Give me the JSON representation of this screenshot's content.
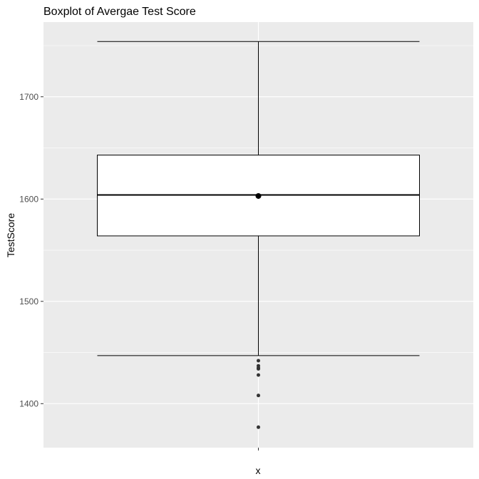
{
  "chart_data": {
    "type": "boxplot",
    "title": "Boxplot of Avergae Test Score",
    "xlabel": "x",
    "ylabel": "TestScore",
    "ylim": [
      1357,
      1773
    ],
    "yticks": [
      1400,
      1500,
      1600,
      1700
    ],
    "xticks": [
      ""
    ],
    "grid": true,
    "colors": {
      "panel": "#ebebeb",
      "grid": "#ffffff",
      "box_fill": "#ffffff",
      "lines": "#000000",
      "points": "#333333"
    },
    "box": {
      "whisker_low": 1447,
      "q1": 1564,
      "median": 1604,
      "q3": 1643,
      "whisker_high": 1754,
      "mean": 1603
    },
    "outliers": [
      1442,
      1437,
      1435,
      1434,
      1428,
      1408,
      1377
    ]
  }
}
